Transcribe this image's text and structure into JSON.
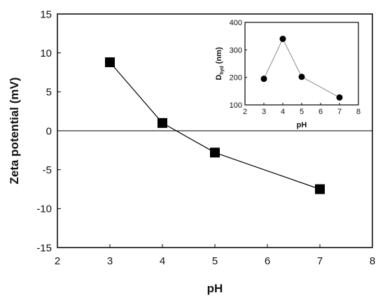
{
  "chart_data": [
    {
      "type": "line",
      "xlabel": "pH",
      "ylabel": "Zeta potential (mV)",
      "xlim": [
        2,
        8
      ],
      "ylim": [
        -15,
        15
      ],
      "xticks": [
        "2",
        "3",
        "4",
        "5",
        "6",
        "7",
        "8"
      ],
      "yticks": [
        "15",
        "10",
        "5",
        "0",
        "-5",
        "-10",
        "-15"
      ],
      "zero_line": true,
      "grid": false,
      "marker": "square",
      "color": "#000000",
      "series": [
        {
          "x": [
            3,
            4,
            5,
            7
          ],
          "y": [
            8.8,
            1.0,
            -2.8,
            -7.5
          ]
        }
      ]
    },
    {
      "type": "line",
      "inset": true,
      "placement": "top-right",
      "xlabel": "pH",
      "ylabel_main": "D",
      "ylabel_sub": "hyd",
      "ylabel_unit": "(nm)",
      "xlim": [
        2,
        8
      ],
      "ylim": [
        100,
        400
      ],
      "xticks": [
        "2",
        "3",
        "4",
        "5",
        "6",
        "7",
        "8"
      ],
      "yticks": [
        "400",
        "300",
        "200",
        "100"
      ],
      "grid": false,
      "marker": "circle",
      "color": "#000000",
      "line_color": "#888888",
      "series": [
        {
          "x": [
            3,
            4,
            5,
            7
          ],
          "y": [
            195,
            340,
            202,
            127
          ]
        }
      ]
    }
  ]
}
